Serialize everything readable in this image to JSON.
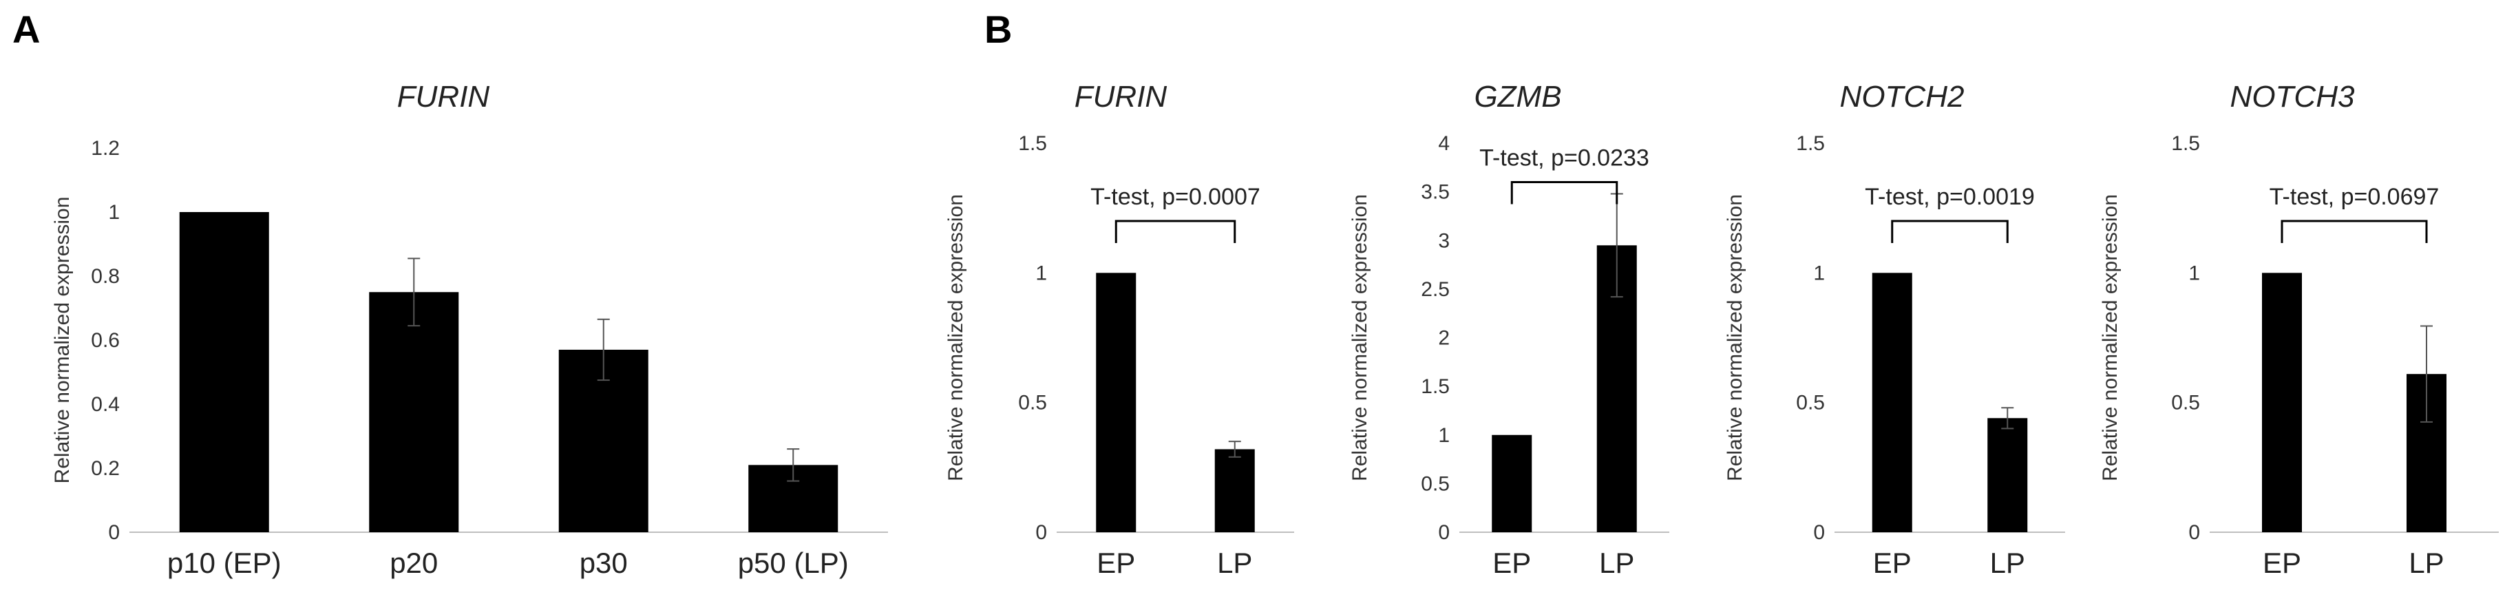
{
  "panels": [
    {
      "letter": "A"
    },
    {
      "letter": "B"
    }
  ],
  "chart_data": [
    {
      "type": "bar",
      "panel": "A",
      "title": "FURIN",
      "ylabel": "Relative normalized expression",
      "categories": [
        "p10 (EP)",
        "p20",
        "p30",
        "p50 (LP)"
      ],
      "values": [
        1.0,
        0.75,
        0.57,
        0.21
      ],
      "errors": [
        0,
        0.105,
        0.095,
        0.05
      ],
      "ylim": [
        0,
        1.2
      ],
      "yticks": [
        "0",
        "0.2",
        "0.4",
        "0.6",
        "0.8",
        "1",
        "1.2"
      ],
      "bar_color": "#000000",
      "grid": false
    },
    {
      "type": "bar",
      "panel": "B",
      "title": "FURIN",
      "ylabel": "Relative normalized expression",
      "categories": [
        "EP",
        "LP"
      ],
      "values": [
        1.0,
        0.32
      ],
      "errors": [
        0,
        0.03
      ],
      "ylim": [
        0,
        1.5
      ],
      "yticks": [
        "0",
        "0.5",
        "1",
        "1.5"
      ],
      "annotation": "T-test, p=0.0007",
      "bar_color": "#000000",
      "grid": false
    },
    {
      "type": "bar",
      "panel": "B",
      "title": "GZMB",
      "ylabel": "Relative normalized expression",
      "categories": [
        "EP",
        "LP"
      ],
      "values": [
        1.0,
        2.95
      ],
      "errors": [
        0,
        0.53
      ],
      "ylim": [
        0,
        4
      ],
      "yticks": [
        "0",
        "0.5",
        "1",
        "1.5",
        "2",
        "2.5",
        "3",
        "3.5",
        "4"
      ],
      "annotation": "T-test, p=0.0233",
      "bar_color": "#000000",
      "grid": false
    },
    {
      "type": "bar",
      "panel": "B",
      "title": "NOTCH2",
      "ylabel": "Relative normalized expression",
      "categories": [
        "EP",
        "LP"
      ],
      "values": [
        1.0,
        0.44
      ],
      "errors": [
        0,
        0.04
      ],
      "ylim": [
        0,
        1.5
      ],
      "yticks": [
        "0",
        "0.5",
        "1",
        "1.5"
      ],
      "annotation": "T-test, p=0.0019",
      "bar_color": "#000000",
      "grid": false
    },
    {
      "type": "bar",
      "panel": "B",
      "title": "NOTCH3",
      "ylabel": "Relative normalized expression",
      "categories": [
        "EP",
        "LP"
      ],
      "values": [
        1.0,
        0.61
      ],
      "errors": [
        0,
        0.185
      ],
      "ylim": [
        0,
        1.5
      ],
      "yticks": [
        "0",
        "0.5",
        "1",
        "1.5"
      ],
      "annotation": "T-test, p=0.0697",
      "bar_color": "#000000",
      "grid": false
    }
  ]
}
